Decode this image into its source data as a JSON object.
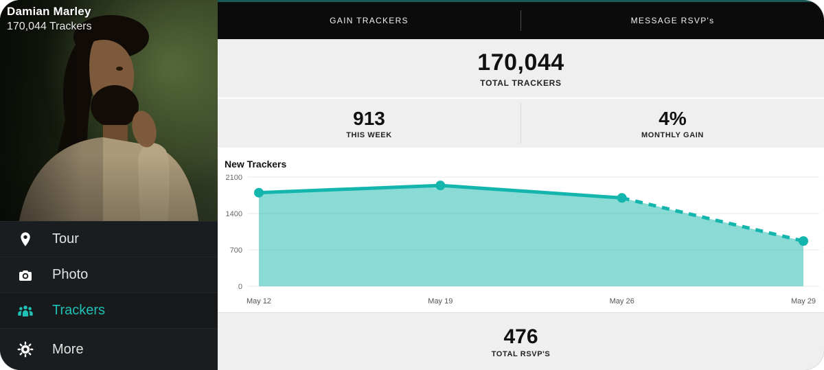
{
  "colors": {
    "accent_teal": "#1fc0b6",
    "accent_strip": "#185a54",
    "chart_line": "#14b5ad",
    "chart_fill": "rgba(31,185,175,0.52)",
    "sidebar_bg": "#1a1d1f",
    "tabbar_bg": "#0b0b0b",
    "stats_bg": "#efefef"
  },
  "sidebar": {
    "artist_name": "Damian Marley",
    "trackers_summary": "170,044  Trackers",
    "menu": [
      {
        "label": "Tour",
        "icon": "pin-icon",
        "active": false
      },
      {
        "label": "Photo",
        "icon": "camera-icon",
        "active": false
      },
      {
        "label": "Trackers",
        "icon": "people-icon",
        "active": true
      },
      {
        "label": "More",
        "icon": "gear-icon",
        "active": false
      }
    ]
  },
  "tabs": [
    {
      "label": "GAIN TRACKERS"
    },
    {
      "label": "MESSAGE RSVP's"
    }
  ],
  "stats": {
    "total": {
      "value": "170,044",
      "label": "TOTAL TRACKERS"
    },
    "week": {
      "value": "913",
      "label": "THIS WEEK"
    },
    "gain": {
      "value": "4%",
      "label": "MONTHLY GAIN"
    },
    "rsvp": {
      "value": "476",
      "label": "TOTAL RSVP'S"
    }
  },
  "chart_data": {
    "type": "area",
    "title": "New Trackers",
    "x": [
      "May 12",
      "May 19",
      "May 26",
      "May 29"
    ],
    "values": [
      1800,
      1940,
      1700,
      870
    ],
    "projected_from_index": 2,
    "y_ticks": [
      0,
      700,
      1400,
      2100
    ],
    "ylim": [
      0,
      2100
    ],
    "grid": true,
    "legend": "none",
    "line_color": "#14b5ad",
    "fill_color": "rgba(31,185,175,0.52)"
  }
}
